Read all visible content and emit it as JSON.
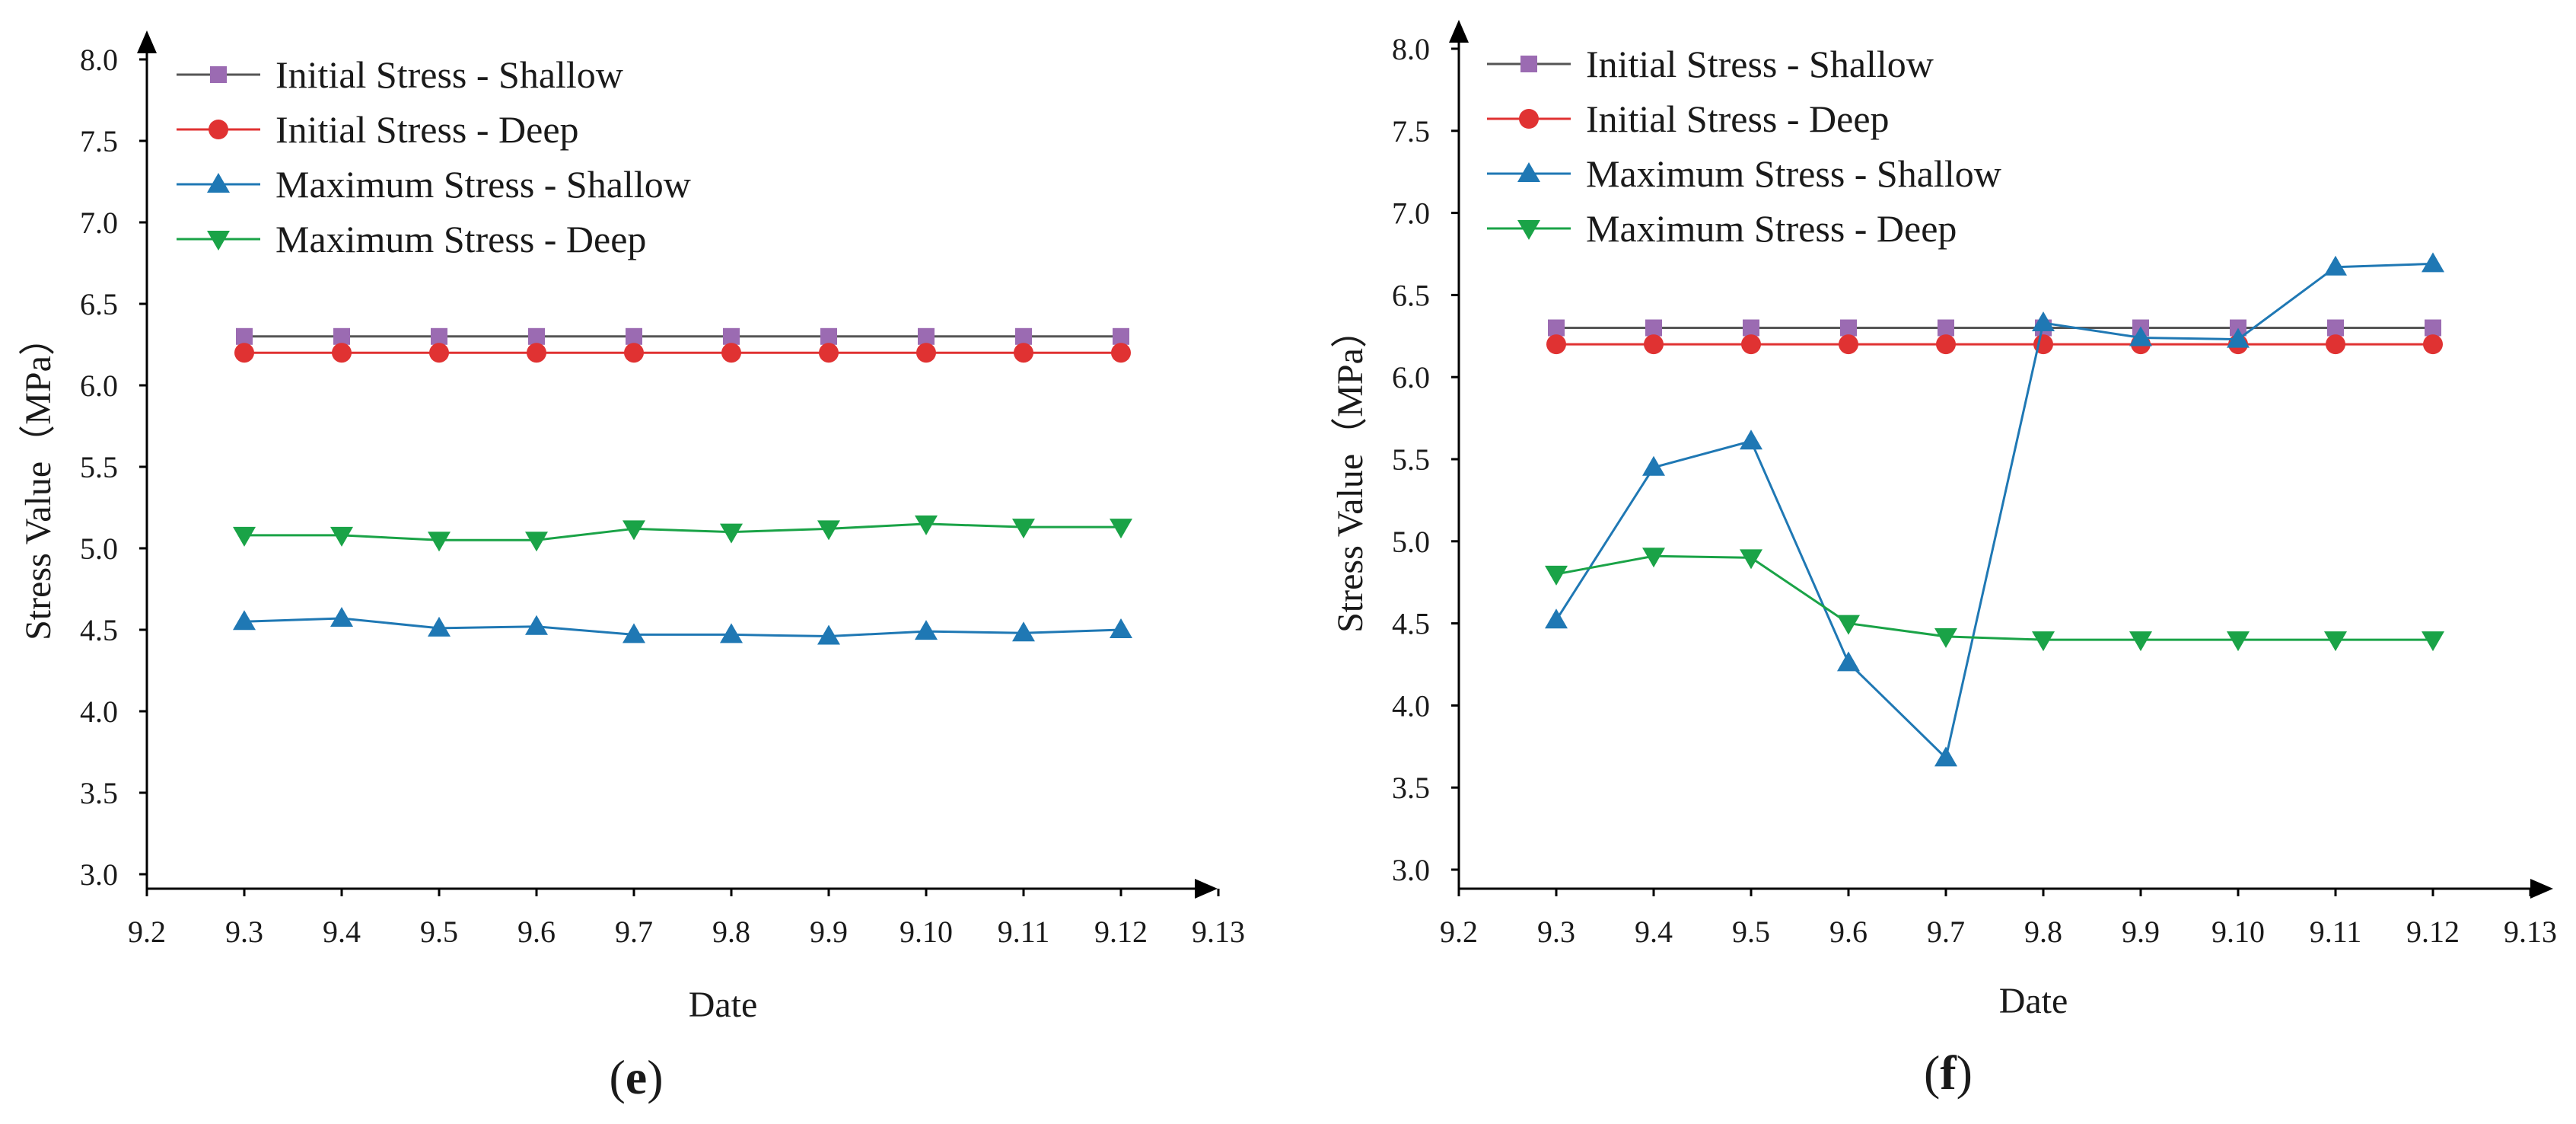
{
  "colors": {
    "initial_shallow": "#9b6bb2",
    "initial_deep": "#e03232",
    "maximum_shallow": "#1f78b4",
    "maximum_deep": "#1aa347",
    "initial_shallow_line": "#555555",
    "axis": "#000000"
  },
  "chart_data": [
    {
      "type": "line",
      "panel": "e",
      "panel_label": {
        "open": "(",
        "letter": "e",
        "close": ")"
      },
      "xlabel": "Date",
      "ylabel": "Stress Value（MPa）",
      "x_ticks": [
        "9.2",
        "9.3",
        "9.4",
        "9.5",
        "9.6",
        "9.7",
        "9.8",
        "9.9",
        "9.10",
        "9.11",
        "9.12",
        "9.13"
      ],
      "categories": [
        "9.3",
        "9.4",
        "9.5",
        "9.6",
        "9.7",
        "9.8",
        "9.9",
        "9.10",
        "9.11",
        "9.12"
      ],
      "y_ticks": [
        "3.0",
        "3.5",
        "4.0",
        "4.5",
        "5.0",
        "5.5",
        "6.0",
        "6.5",
        "7.0",
        "7.5",
        "8.0"
      ],
      "ylim": [
        3.0,
        8.0
      ],
      "legend_position": "top-left",
      "series": [
        {
          "key": "initial_shallow",
          "name": "Initial Stress - Shallow",
          "marker": "square",
          "values": [
            6.3,
            6.3,
            6.3,
            6.3,
            6.3,
            6.3,
            6.3,
            6.3,
            6.3,
            6.3
          ]
        },
        {
          "key": "initial_deep",
          "name": "Initial Stress - Deep",
          "marker": "circle",
          "values": [
            6.2,
            6.2,
            6.2,
            6.2,
            6.2,
            6.2,
            6.2,
            6.2,
            6.2,
            6.2
          ]
        },
        {
          "key": "maximum_shallow",
          "name": "Maximum Stress - Shallow",
          "marker": "triangle-up",
          "values": [
            4.55,
            4.57,
            4.51,
            4.52,
            4.47,
            4.47,
            4.46,
            4.49,
            4.48,
            4.5
          ]
        },
        {
          "key": "maximum_deep",
          "name": "Maximum Stress - Deep",
          "marker": "triangle-down",
          "values": [
            5.08,
            5.08,
            5.05,
            5.05,
            5.12,
            5.1,
            5.12,
            5.15,
            5.13,
            5.13
          ]
        }
      ]
    },
    {
      "type": "line",
      "panel": "f",
      "panel_label": {
        "open": "(",
        "letter": "f",
        "close": ")"
      },
      "xlabel": "Date",
      "ylabel": "Stress Value（MPa）",
      "x_ticks": [
        "9.2",
        "9.3",
        "9.4",
        "9.5",
        "9.6",
        "9.7",
        "9.8",
        "9.9",
        "9.10",
        "9.11",
        "9.12",
        "9.13"
      ],
      "categories": [
        "9.3",
        "9.4",
        "9.5",
        "9.6",
        "9.7",
        "9.8",
        "9.9",
        "9.10",
        "9.11",
        "9.12"
      ],
      "y_ticks": [
        "3.0",
        "3.5",
        "4.0",
        "4.5",
        "5.0",
        "5.5",
        "6.0",
        "6.5",
        "7.0",
        "7.5",
        "8.0"
      ],
      "ylim": [
        3.0,
        8.0
      ],
      "legend_position": "top-left",
      "series": [
        {
          "key": "initial_shallow",
          "name": "Initial Stress - Shallow",
          "marker": "square",
          "values": [
            6.3,
            6.3,
            6.3,
            6.3,
            6.3,
            6.3,
            6.3,
            6.3,
            6.3,
            6.3
          ]
        },
        {
          "key": "initial_deep",
          "name": "Initial Stress - Deep",
          "marker": "circle",
          "values": [
            6.2,
            6.2,
            6.2,
            6.2,
            6.2,
            6.2,
            6.2,
            6.2,
            6.2,
            6.2
          ]
        },
        {
          "key": "maximum_shallow",
          "name": "Maximum Stress - Shallow",
          "marker": "triangle-up",
          "values": [
            4.52,
            5.45,
            5.61,
            4.26,
            3.68,
            6.33,
            6.24,
            6.23,
            6.67,
            6.69
          ]
        },
        {
          "key": "maximum_deep",
          "name": "Maximum Stress - Deep",
          "marker": "triangle-down",
          "values": [
            4.8,
            4.91,
            4.9,
            4.5,
            4.42,
            4.4,
            4.4,
            4.4,
            4.4,
            4.4
          ]
        }
      ]
    }
  ]
}
